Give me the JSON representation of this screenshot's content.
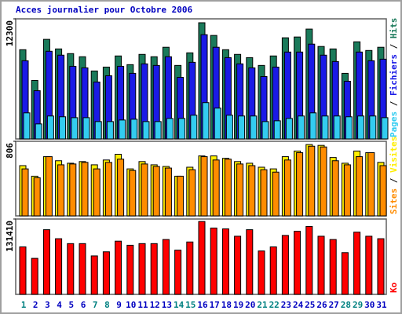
{
  "title": "Acces journalier pour Octobre 2006",
  "legend_separator": " / ",
  "categories": [
    "1",
    "2",
    "3",
    "4",
    "5",
    "6",
    "7",
    "8",
    "9",
    "10",
    "11",
    "12",
    "13",
    "14",
    "15",
    "16",
    "17",
    "18",
    "19",
    "20",
    "21",
    "22",
    "23",
    "24",
    "25",
    "26",
    "27",
    "28",
    "29",
    "30",
    "31"
  ],
  "category_colors": [
    "#008080",
    "#0000c0",
    "#0000c0",
    "#0000c0",
    "#0000c0",
    "#0000c0",
    "#008080",
    "#008080",
    "#0000c0",
    "#0000c0",
    "#0000c0",
    "#0000c0",
    "#0000c0",
    "#008080",
    "#008080",
    "#0000c0",
    "#0000c0",
    "#0000c0",
    "#0000c0",
    "#0000c0",
    "#008080",
    "#008080",
    "#0000c0",
    "#0000c0",
    "#0000c0",
    "#0000c0",
    "#0000c0",
    "#008080",
    "#008080",
    "#0000c0",
    "#0000c0"
  ],
  "chart_data": [
    {
      "type": "bar",
      "ylim": [
        0,
        12300
      ],
      "yticks": [
        12300
      ],
      "series": [
        {
          "name": "Pages",
          "color": "#33ccf0",
          "values": [
            2670,
            1540,
            2350,
            2270,
            2180,
            2180,
            1780,
            1780,
            1940,
            2020,
            1780,
            1780,
            2100,
            2100,
            2430,
            3720,
            3160,
            2430,
            2350,
            2350,
            1780,
            1860,
            2100,
            2350,
            2670,
            2350,
            2350,
            2270,
            2350,
            2350,
            2180
          ]
        },
        {
          "name": "Fichiers",
          "color": "#1a1ae6",
          "values": [
            8010,
            4940,
            8980,
            8580,
            7440,
            7280,
            5830,
            6470,
            7440,
            6720,
            7690,
            7530,
            8420,
            6310,
            7850,
            10680,
            9390,
            8330,
            7690,
            7280,
            6390,
            7360,
            8900,
            8900,
            9710,
            8580,
            7930,
            5910,
            8900,
            8010,
            8170
          ]
        },
        {
          "name": "Hits",
          "color": "#1a7a5a",
          "values": [
            9140,
            5990,
            10200,
            9220,
            8740,
            8420,
            6960,
            7360,
            8500,
            7610,
            8660,
            8420,
            9390,
            7530,
            8820,
            11900,
            10600,
            9140,
            8660,
            8330,
            7530,
            8500,
            10360,
            10440,
            11250,
            9470,
            9220,
            6720,
            9950,
            9060,
            9390
          ]
        }
      ]
    },
    {
      "type": "bar",
      "ylim": [
        0,
        806
      ],
      "yticks": [
        806
      ],
      "series": [
        {
          "name": "Sites",
          "color": "#ff8c00",
          "values": [
            508,
            412,
            640,
            552,
            561,
            578,
            508,
            578,
            613,
            491,
            561,
            534,
            517,
            429,
            499,
            640,
            604,
            613,
            561,
            543,
            499,
            473,
            604,
            683,
            753,
            745,
            596,
            552,
            640,
            683,
            543
          ]
        },
        {
          "name": "Visites",
          "color": "#ffee00",
          "values": [
            543,
            429,
            640,
            596,
            569,
            587,
            552,
            604,
            666,
            508,
            587,
            552,
            534,
            429,
            526,
            648,
            648,
            622,
            587,
            569,
            526,
            508,
            640,
            701,
            771,
            762,
            631,
            569,
            701,
            683,
            578
          ]
        }
      ]
    },
    {
      "type": "bar",
      "ylim": [
        0,
        131410
      ],
      "yticks": [
        131410
      ],
      "series": [
        {
          "name": "Ko",
          "color": "#ff0000",
          "values": [
            82830,
            62830,
            112800,
            97100,
            88540,
            88540,
            67120,
            74260,
            92820,
            85680,
            88540,
            88540,
            95680,
            77110,
            91390,
            127100,
            115700,
            114200,
            101400,
            112800,
            75680,
            82830,
            102800,
            110000,
            118500,
            101400,
            95680,
            72830,
            108500,
            101400,
            97100
          ]
        }
      ]
    }
  ]
}
